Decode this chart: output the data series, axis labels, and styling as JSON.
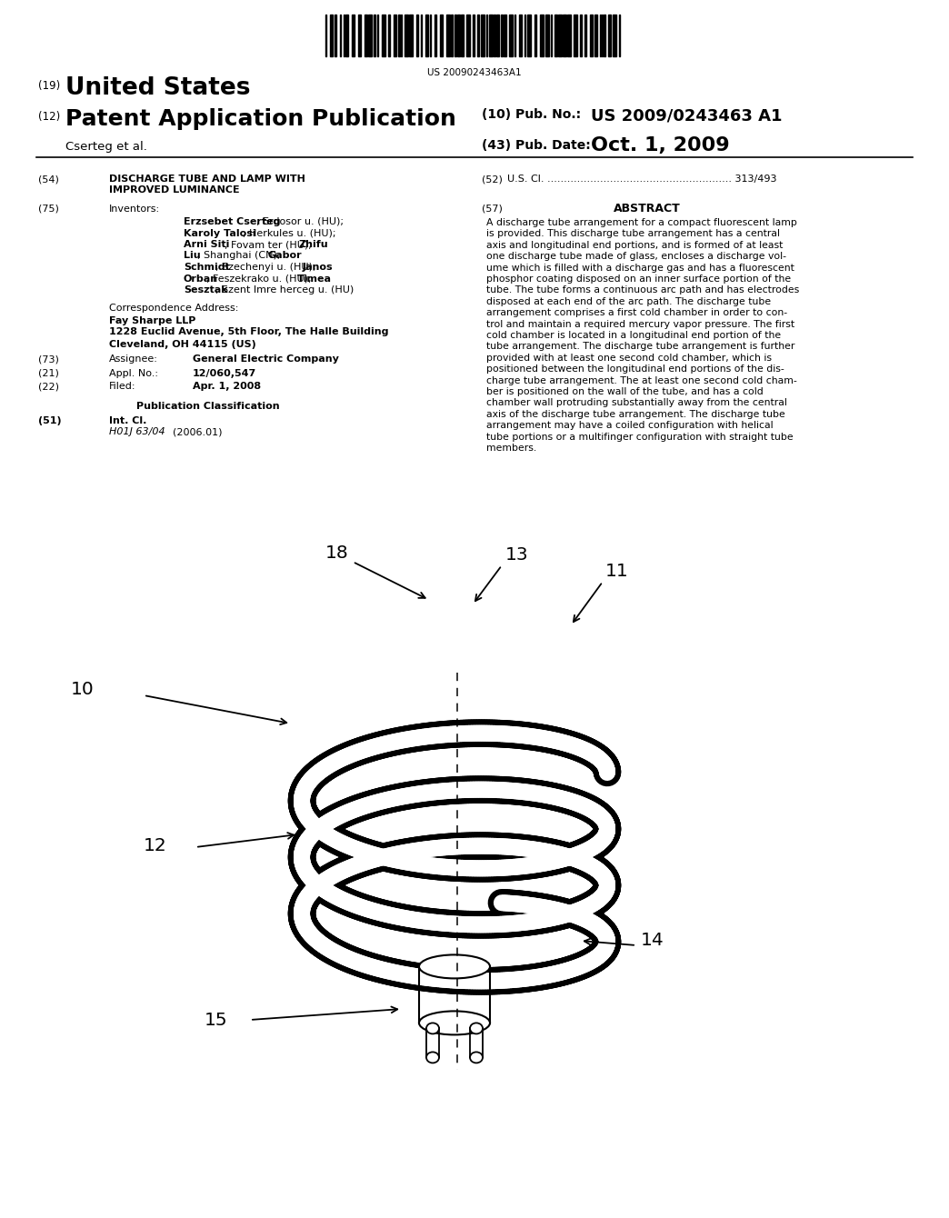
{
  "background_color": "#ffffff",
  "barcode_text": "US 20090243463A1",
  "title_19": "(19)",
  "title_country": "United States",
  "title_12": "(12)",
  "title_pub": "Patent Application Publication",
  "title_10": "(10) Pub. No.:",
  "pub_no": "US 2009/0243463 A1",
  "title_author": "Cserteg et al.",
  "title_43": "(43) Pub. Date:",
  "pub_date": "Oct. 1, 2009",
  "field_54": "(54)",
  "title_54a": "DISCHARGE TUBE AND LAMP WITH",
  "title_54b": "IMPROVED LUMINANCE",
  "field_52": "(52)",
  "usc_line": "U.S. Cl. ........................................................ 313/493",
  "field_75": "(75)",
  "label_75": "Inventors:",
  "field_57": "(57)",
  "title_abstract": "ABSTRACT",
  "abstract_text": "A discharge tube arrangement for a compact fluorescent lamp\nis provided. This discharge tube arrangement has a central\naxis and longitudinal end portions, and is formed of at least\none discharge tube made of glass, encloses a discharge vol-\nume which is filled with a discharge gas and has a fluorescent\nphosphor coating disposed on an inner surface portion of the\ntube. The tube forms a continuous arc path and has electrodes\ndisposed at each end of the arc path. The discharge tube\narrangement comprises a first cold chamber in order to con-\ntrol and maintain a required mercury vapor pressure. The first\ncold chamber is located in a longitudinal end portion of the\ntube arrangement. The discharge tube arrangement is further\nprovided with at least one second cold chamber, which is\npositioned between the longitudinal end portions of the dis-\ncharge tube arrangement. The at least one second cold cham-\nber is positioned on the wall of the tube, and has a cold\nchamber wall protruding substantially away from the central\naxis of the discharge tube arrangement. The discharge tube\narrangement may have a coiled configuration with helical\ntube portions or a multifinger configuration with straight tube\nmembers.",
  "corr_addr_label": "Correspondence Address:",
  "corr_line1": "Fay Sharpe LLP",
  "corr_line2": "1228 Euclid Avenue, 5th Floor, The Halle Building",
  "corr_line3": "Cleveland, OH 44115 (US)",
  "field_73": "(73)",
  "label_73": "Assignee:",
  "assignee": "General Electric Company",
  "field_21": "(21)",
  "label_21": "Appl. No.:",
  "appl_no": "12/060,547",
  "field_22": "(22)",
  "label_22": "Filed:",
  "filed": "Apr. 1, 2008",
  "pub_class_label": "Publication Classification",
  "field_51": "(51)",
  "label_51": "Int. Cl.",
  "int_cl": "H01J 63/04",
  "int_cl_year": "(2006.01)",
  "inv_lines": [
    [
      [
        "Erzsebet Cserteg",
        true
      ],
      [
        ", Erdosor u. (HU);",
        false
      ]
    ],
    [
      [
        "Karoly Talosi",
        true
      ],
      [
        ", Herkules u. (HU);",
        false
      ]
    ],
    [
      [
        "Arni Siti",
        true
      ],
      [
        ", Fovam ter (HU); ",
        false
      ],
      [
        "Zhifu",
        true
      ]
    ],
    [
      [
        "Liu",
        true
      ],
      [
        ", Shanghai (CN); ",
        false
      ],
      [
        "Gabor",
        true
      ]
    ],
    [
      [
        "Schmidt",
        true
      ],
      [
        ", Szechenyi u. (HU); ",
        false
      ],
      [
        "Janos",
        true
      ]
    ],
    [
      [
        "Orban",
        true
      ],
      [
        ", Feszekrako u. (HU); ",
        false
      ],
      [
        "Timea",
        true
      ]
    ],
    [
      [
        "Sesztak",
        true
      ],
      [
        ", Szent Imre herceg u. (HU)",
        false
      ]
    ]
  ]
}
